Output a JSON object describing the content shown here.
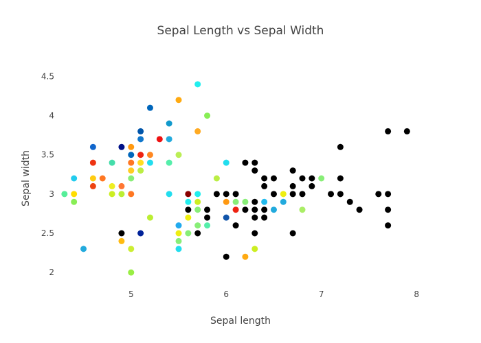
{
  "chart_data": {
    "type": "scatter",
    "title": "Sepal Length vs Sepal Width",
    "xlabel": "Sepal length",
    "ylabel": "Sepal width",
    "xlim": [
      4.2,
      8.1
    ],
    "ylim": [
      1.8,
      4.6
    ],
    "xticks": [
      "5",
      "6",
      "7",
      "8"
    ],
    "yticks": [
      "2",
      "2.5",
      "3",
      "3.5",
      "4",
      "4.5"
    ],
    "grid": false,
    "legend": "none",
    "colorscale": "jet",
    "point_color": "#000000",
    "points": [
      {
        "x": 4.3,
        "y": 3.0,
        "c": "#55ee99"
      },
      {
        "x": 4.4,
        "y": 3.2,
        "c": "#22ccee"
      },
      {
        "x": 4.4,
        "y": 3.0,
        "c": "#ffdd00"
      },
      {
        "x": 4.4,
        "y": 2.9,
        "c": "#88ee55"
      },
      {
        "x": 4.5,
        "y": 2.3,
        "c": "#22aadd"
      },
      {
        "x": 4.6,
        "y": 3.6,
        "c": "#1166cc"
      },
      {
        "x": 4.6,
        "y": 3.4,
        "c": "#ee3311"
      },
      {
        "x": 4.6,
        "y": 3.2,
        "c": "#ffcc11"
      },
      {
        "x": 4.6,
        "y": 3.1,
        "c": "#ee4411"
      },
      {
        "x": 4.7,
        "y": 3.2,
        "c": "#ff7722"
      },
      {
        "x": 4.8,
        "y": 3.4,
        "c": "#44ddaa"
      },
      {
        "x": 4.8,
        "y": 3.1,
        "c": "#eeee22"
      },
      {
        "x": 4.8,
        "y": 3.0,
        "c": "#ccee22"
      },
      {
        "x": 4.9,
        "y": 3.6,
        "c": "#001188"
      },
      {
        "x": 4.9,
        "y": 3.1,
        "c": "#ff7733"
      },
      {
        "x": 4.9,
        "y": 3.0,
        "c": "#bbee33"
      },
      {
        "x": 4.9,
        "y": 2.5,
        "c": "#000000"
      },
      {
        "x": 4.9,
        "y": 2.4,
        "c": "#ffbb11"
      },
      {
        "x": 5.0,
        "y": 3.6,
        "c": "#ff9911"
      },
      {
        "x": 5.0,
        "y": 3.5,
        "c": "#0066bb"
      },
      {
        "x": 5.0,
        "y": 3.4,
        "c": "#ff7722"
      },
      {
        "x": 5.0,
        "y": 3.3,
        "c": "#ffcc22"
      },
      {
        "x": 5.0,
        "y": 3.2,
        "c": "#88ee77"
      },
      {
        "x": 5.0,
        "y": 3.0,
        "c": "#ff7722"
      },
      {
        "x": 5.0,
        "y": 2.3,
        "c": "#ccee33"
      },
      {
        "x": 5.0,
        "y": 2.0,
        "c": "#99ee44"
      },
      {
        "x": 5.1,
        "y": 3.8,
        "c": "#0055aa"
      },
      {
        "x": 5.1,
        "y": 3.7,
        "c": "#1177cc"
      },
      {
        "x": 5.1,
        "y": 3.5,
        "c": "#ee2211"
      },
      {
        "x": 5.1,
        "y": 3.4,
        "c": "#ffdd22"
      },
      {
        "x": 5.1,
        "y": 3.3,
        "c": "#bbee44"
      },
      {
        "x": 5.1,
        "y": 2.5,
        "c": "#002299"
      },
      {
        "x": 5.2,
        "y": 4.1,
        "c": "#0066bb"
      },
      {
        "x": 5.2,
        "y": 3.5,
        "c": "#ff8822"
      },
      {
        "x": 5.2,
        "y": 3.4,
        "c": "#22ddee"
      },
      {
        "x": 5.2,
        "y": 2.7,
        "c": "#bbee33"
      },
      {
        "x": 5.3,
        "y": 3.7,
        "c": "#ee1111"
      },
      {
        "x": 5.4,
        "y": 3.9,
        "c": "#1199cc"
      },
      {
        "x": 5.4,
        "y": 3.7,
        "c": "#22aadd"
      },
      {
        "x": 5.4,
        "y": 3.4,
        "c": "#55eeaa"
      },
      {
        "x": 5.4,
        "y": 3.0,
        "c": "#22ddee"
      },
      {
        "x": 5.5,
        "y": 4.2,
        "c": "#ffaa11"
      },
      {
        "x": 5.5,
        "y": 3.5,
        "c": "#bbee55"
      },
      {
        "x": 5.5,
        "y": 2.6,
        "c": "#22aaee"
      },
      {
        "x": 5.5,
        "y": 2.5,
        "c": "#eeee11"
      },
      {
        "x": 5.5,
        "y": 2.4,
        "c": "#88ee77"
      },
      {
        "x": 5.5,
        "y": 2.3,
        "c": "#22ddee"
      },
      {
        "x": 5.6,
        "y": 3.0,
        "c": "#880000"
      },
      {
        "x": 5.6,
        "y": 2.9,
        "c": "#22eeee"
      },
      {
        "x": 5.6,
        "y": 2.8,
        "c": "#000000"
      },
      {
        "x": 5.6,
        "y": 2.7,
        "c": "#eeee11"
      },
      {
        "x": 5.6,
        "y": 2.5,
        "c": "#88ee77"
      },
      {
        "x": 5.7,
        "y": 4.4,
        "c": "#22eeee"
      },
      {
        "x": 5.7,
        "y": 3.8,
        "c": "#ffaa22"
      },
      {
        "x": 5.7,
        "y": 3.0,
        "c": "#22eeee"
      },
      {
        "x": 5.7,
        "y": 2.9,
        "c": "#ccee22"
      },
      {
        "x": 5.7,
        "y": 2.8,
        "c": "#88ee77"
      },
      {
        "x": 5.7,
        "y": 2.6,
        "c": "#88ee77"
      },
      {
        "x": 5.7,
        "y": 2.5,
        "c": "#000000"
      },
      {
        "x": 5.8,
        "y": 4.0,
        "c": "#88ee55"
      },
      {
        "x": 5.8,
        "y": 2.8,
        "c": "#000000"
      },
      {
        "x": 5.8,
        "y": 2.7,
        "c": "#000000"
      },
      {
        "x": 5.8,
        "y": 2.6,
        "c": "#55eeaa"
      },
      {
        "x": 5.9,
        "y": 3.2,
        "c": "#bbee44"
      },
      {
        "x": 5.9,
        "y": 3.0,
        "c": "#000000"
      },
      {
        "x": 6.0,
        "y": 3.4,
        "c": "#22ddee"
      },
      {
        "x": 6.0,
        "y": 3.0,
        "c": "#000000"
      },
      {
        "x": 6.0,
        "y": 2.9,
        "c": "#ff9911"
      },
      {
        "x": 6.0,
        "y": 2.7,
        "c": "#1155aa"
      },
      {
        "x": 6.0,
        "y": 2.2,
        "c": "#000000"
      },
      {
        "x": 6.1,
        "y": 3.0,
        "c": "#000000"
      },
      {
        "x": 6.1,
        "y": 2.9,
        "c": "#88ee77"
      },
      {
        "x": 6.1,
        "y": 2.8,
        "c": "#ee2211"
      },
      {
        "x": 6.1,
        "y": 2.6,
        "c": "#000000"
      },
      {
        "x": 6.2,
        "y": 3.4,
        "c": "#000000"
      },
      {
        "x": 6.2,
        "y": 2.9,
        "c": "#88ee77"
      },
      {
        "x": 6.2,
        "y": 2.8,
        "c": "#000000"
      },
      {
        "x": 6.2,
        "y": 2.2,
        "c": "#ffaa11"
      },
      {
        "x": 6.3,
        "y": 3.4,
        "c": "#000000"
      },
      {
        "x": 6.3,
        "y": 3.3,
        "c": "#000000"
      },
      {
        "x": 6.3,
        "y": 2.9,
        "c": "#000000"
      },
      {
        "x": 6.3,
        "y": 2.8,
        "c": "#000000"
      },
      {
        "x": 6.3,
        "y": 2.7,
        "c": "#000000"
      },
      {
        "x": 6.3,
        "y": 2.5,
        "c": "#000000"
      },
      {
        "x": 6.3,
        "y": 2.3,
        "c": "#ccee22"
      },
      {
        "x": 6.4,
        "y": 3.2,
        "c": "#000000"
      },
      {
        "x": 6.4,
        "y": 3.1,
        "c": "#000000"
      },
      {
        "x": 6.4,
        "y": 2.9,
        "c": "#22bbee"
      },
      {
        "x": 6.4,
        "y": 2.8,
        "c": "#000000"
      },
      {
        "x": 6.4,
        "y": 2.7,
        "c": "#000000"
      },
      {
        "x": 6.5,
        "y": 3.2,
        "c": "#000000"
      },
      {
        "x": 6.5,
        "y": 3.0,
        "c": "#000000"
      },
      {
        "x": 6.5,
        "y": 2.8,
        "c": "#22aadd"
      },
      {
        "x": 6.6,
        "y": 3.0,
        "c": "#eeee11"
      },
      {
        "x": 6.6,
        "y": 2.9,
        "c": "#22aadd"
      },
      {
        "x": 6.7,
        "y": 3.3,
        "c": "#000000"
      },
      {
        "x": 6.7,
        "y": 3.1,
        "c": "#000000"
      },
      {
        "x": 6.7,
        "y": 3.0,
        "c": "#000000"
      },
      {
        "x": 6.7,
        "y": 2.5,
        "c": "#000000"
      },
      {
        "x": 6.8,
        "y": 3.2,
        "c": "#000000"
      },
      {
        "x": 6.8,
        "y": 3.0,
        "c": "#000000"
      },
      {
        "x": 6.8,
        "y": 2.8,
        "c": "#aaee66"
      },
      {
        "x": 6.9,
        "y": 3.2,
        "c": "#000000"
      },
      {
        "x": 6.9,
        "y": 3.1,
        "c": "#000000"
      },
      {
        "x": 7.0,
        "y": 3.2,
        "c": "#88ee77"
      },
      {
        "x": 7.1,
        "y": 3.0,
        "c": "#000000"
      },
      {
        "x": 7.2,
        "y": 3.6,
        "c": "#000000"
      },
      {
        "x": 7.2,
        "y": 3.2,
        "c": "#000000"
      },
      {
        "x": 7.2,
        "y": 3.0,
        "c": "#000000"
      },
      {
        "x": 7.3,
        "y": 2.9,
        "c": "#000000"
      },
      {
        "x": 7.4,
        "y": 2.8,
        "c": "#000000"
      },
      {
        "x": 7.6,
        "y": 3.0,
        "c": "#000000"
      },
      {
        "x": 7.7,
        "y": 3.8,
        "c": "#000000"
      },
      {
        "x": 7.7,
        "y": 3.0,
        "c": "#000000"
      },
      {
        "x": 7.7,
        "y": 2.8,
        "c": "#000000"
      },
      {
        "x": 7.7,
        "y": 2.6,
        "c": "#000000"
      },
      {
        "x": 7.9,
        "y": 3.8,
        "c": "#000000"
      }
    ]
  }
}
